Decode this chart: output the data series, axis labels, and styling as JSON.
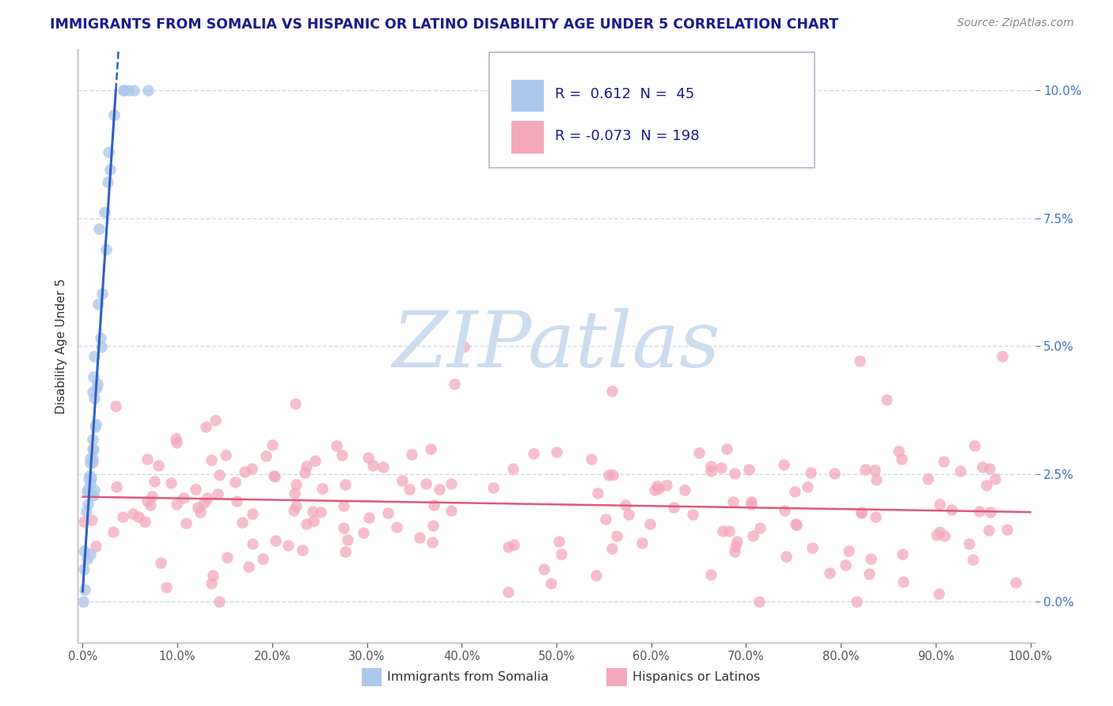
{
  "title": "IMMIGRANTS FROM SOMALIA VS HISPANIC OR LATINO DISABILITY AGE UNDER 5 CORRELATION CHART",
  "source": "Source: ZipAtlas.com",
  "ylabel": "Disability Age Under 5",
  "legend_entries": [
    {
      "label": "Immigrants from Somalia",
      "R": 0.612,
      "N": 45,
      "color": "#adc8ed",
      "line_color": "#3060c0"
    },
    {
      "label": "Hispanics or Latinos",
      "R": -0.073,
      "N": 198,
      "color": "#f4a8bc",
      "line_color": "#e05878"
    }
  ],
  "watermark": "ZIPatlas",
  "watermark_color": "#ccdcef",
  "title_color": "#1a1a8c",
  "background_color": "#ffffff",
  "grid_color": "#c8d8ea",
  "ytick_color": "#4472c4",
  "xlim": [
    -0.005,
    1.005
  ],
  "ylim": [
    -0.008,
    0.108
  ],
  "ytick_positions": [
    0.0,
    0.025,
    0.05,
    0.075,
    0.1
  ],
  "ytick_labels": [
    "0.0%",
    "2.5%",
    "5.0%",
    "7.5%",
    "10.0%"
  ],
  "xtick_positions": [
    0.0,
    0.1,
    0.2,
    0.3,
    0.4,
    0.5,
    0.6,
    0.7,
    0.8,
    0.9,
    1.0
  ],
  "xtick_labels": [
    "0.0%",
    "10.0%",
    "20.0%",
    "30.0%",
    "40.0%",
    "50.0%",
    "60.0%",
    "70.0%",
    "80.0%",
    "90.0%",
    "100.0%"
  ]
}
